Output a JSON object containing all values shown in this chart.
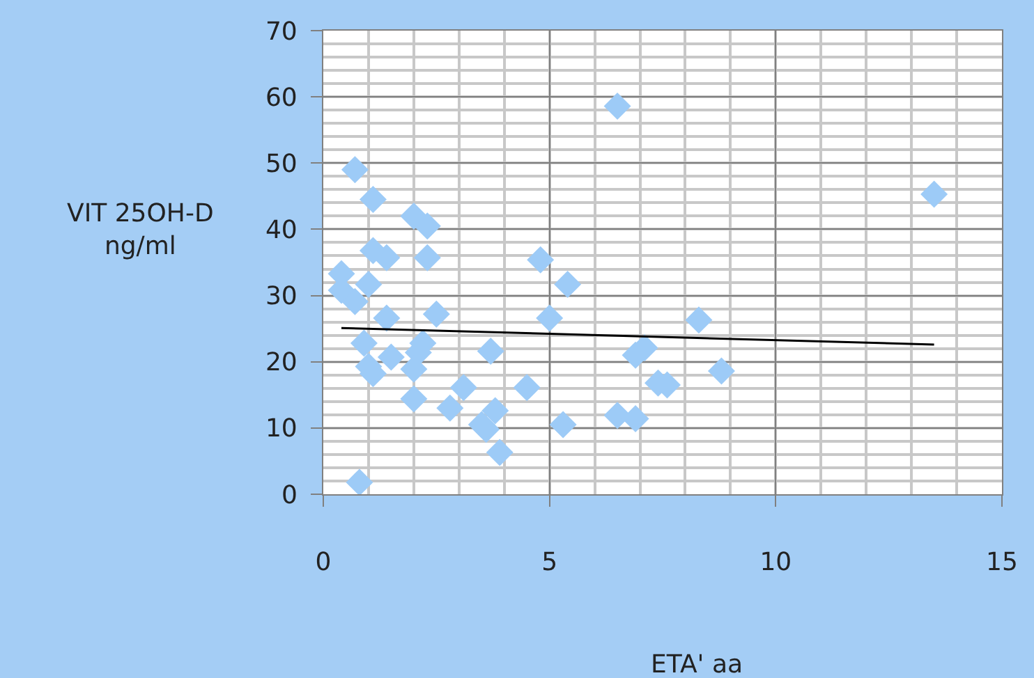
{
  "chart_data": {
    "type": "scatter",
    "xlabel": "ETA' aa",
    "ylabel": "VIT 25OH-D\nng/ml",
    "xlim": [
      0,
      15
    ],
    "xticks": [
      0,
      5,
      10,
      15
    ],
    "ylim": [
      0,
      70
    ],
    "yticks": [
      0,
      10,
      20,
      30,
      40,
      50,
      60,
      70
    ],
    "grid": true,
    "marker": "diamond",
    "series": [
      {
        "color": "#9dcbf7",
        "x": [
          0.7,
          1.1,
          2.0,
          2.3,
          1.1,
          1.4,
          2.3,
          0.4,
          1.0,
          0.4,
          0.7,
          1.4,
          2.5,
          0.9,
          1.5,
          2.2,
          2.1,
          1.0,
          1.1,
          2.0,
          2.0,
          3.7,
          2.8,
          3.1,
          4.5,
          3.8,
          3.5,
          3.6,
          3.9,
          5.3,
          0.8,
          4.8,
          5.4,
          5.0,
          6.5,
          13.5,
          8.3,
          7.1,
          6.9,
          7.4,
          7.6,
          8.8,
          6.5,
          6.9
        ],
        "values": [
          49.0,
          44.5,
          42.0,
          40.5,
          36.8,
          35.7,
          35.7,
          33.3,
          31.7,
          30.8,
          29.1,
          26.6,
          27.2,
          22.8,
          20.7,
          22.8,
          21.4,
          19.3,
          18.2,
          18.9,
          14.4,
          21.6,
          13.0,
          16.1,
          16.1,
          12.6,
          10.5,
          9.8,
          6.3,
          10.5,
          1.8,
          35.4,
          31.7,
          26.6,
          58.6,
          45.3,
          26.3,
          22.1,
          21.0,
          16.8,
          16.5,
          18.6,
          11.9,
          11.4
        ]
      },
      {
        "type": "line",
        "marker": "none",
        "color": "#000000",
        "x": [
          0.4,
          13.5
        ],
        "values": [
          25.1,
          22.6
        ]
      }
    ]
  }
}
